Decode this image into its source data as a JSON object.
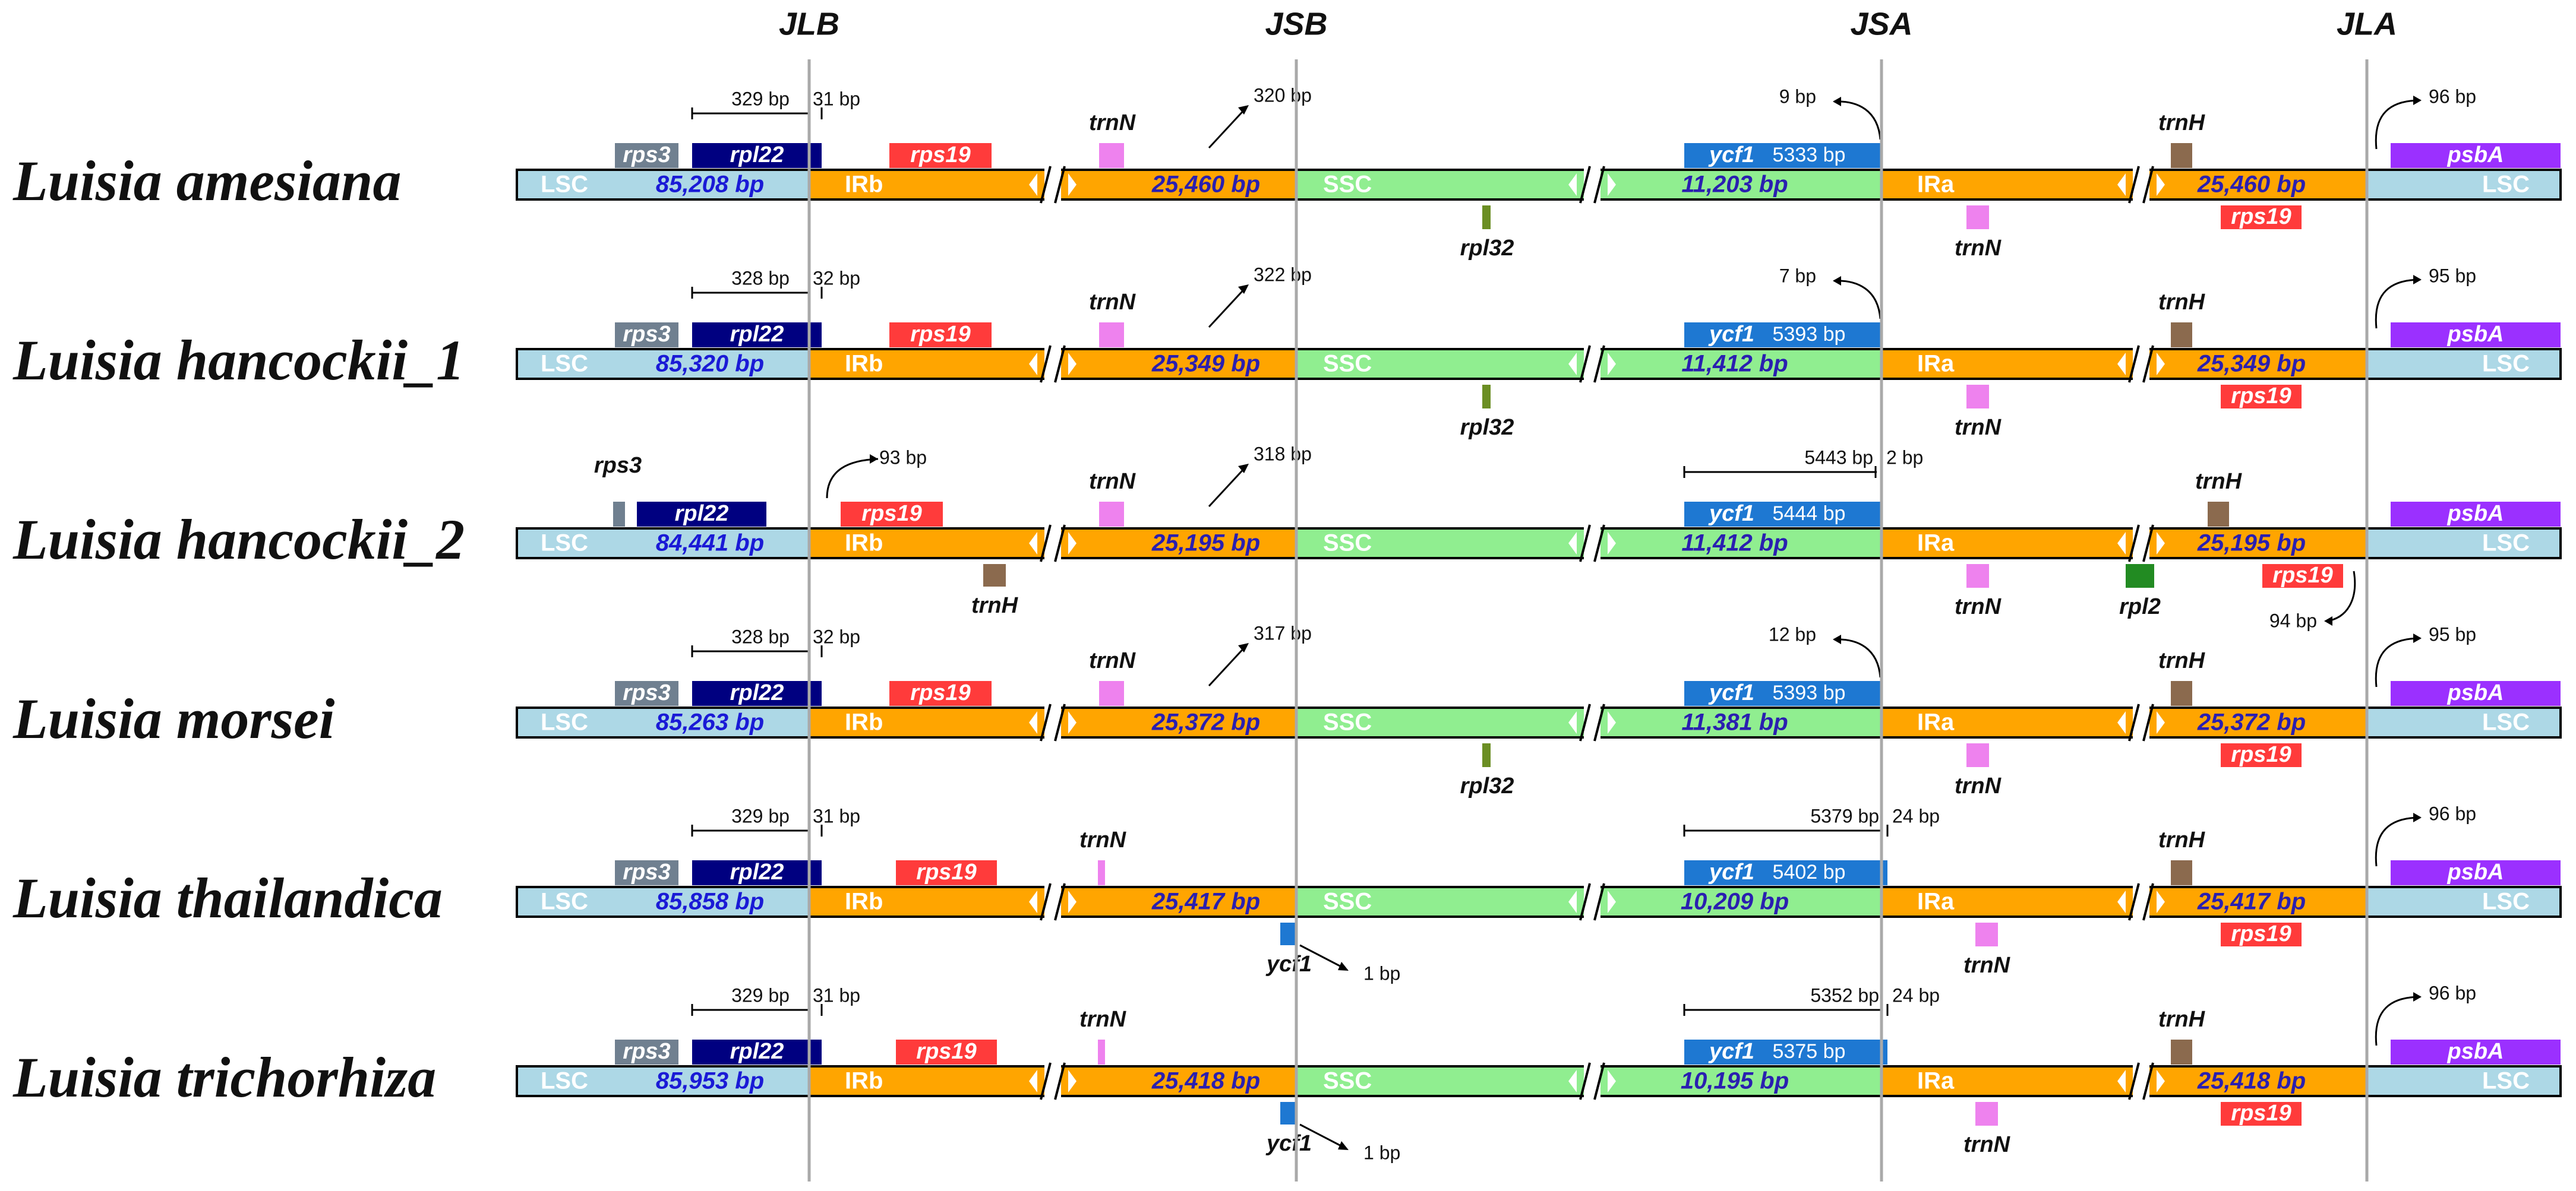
{
  "figure_title": "",
  "junctions": [
    "JLB",
    "JSB",
    "JSA",
    "JLA"
  ],
  "colors": {
    "lsc": "#add8e6",
    "ir": "#ffa500",
    "ssc": "#90ee90",
    "rps3": "#708090",
    "rpl22": "#000080",
    "rps19": "#ff3b3b",
    "trnN": "#ee82ee",
    "trnH": "#8b6a4e",
    "ycf1": "#1e78d2",
    "rpl32": "#6b8e23",
    "psbA": "#9b30ff",
    "rpl2": "#228b22",
    "region_text_ir": "#2a1fb0",
    "region_text_lsc": "#1a1ad6",
    "junction_line": "#a9a9a9"
  },
  "region_labels": {
    "lsc": "LSC",
    "irb": "IRb",
    "ssc": "SSC",
    "ira": "IRa"
  },
  "species": [
    {
      "name": "Luisia amesiana",
      "lsc_len": "85,208 bp",
      "irb_len": "25,460 bp",
      "ssc_len": "11,203 bp",
      "ira_len": "25,460 bp",
      "rps3": "rps3",
      "rpl22": "rpl22",
      "rpl22_span": "329 bp",
      "rpl22_over": "31 bp",
      "rps19_b": "rps19",
      "trnN_b": "trnN",
      "jsb_dist": "320 bp",
      "ssc_gene": "rpl32",
      "ycf1": "ycf1",
      "ycf1_len": "5333 bp",
      "jsa_dist": "9 bp",
      "trnN_a": "trnN",
      "trnH": "trnH",
      "rps19_a": "rps19",
      "psbA": "psbA",
      "jla_dist": "96 bp"
    },
    {
      "name": "Luisia hancockii_1",
      "lsc_len": "85,320 bp",
      "irb_len": "25,349 bp",
      "ssc_len": "11,412 bp",
      "ira_len": "25,349 bp",
      "rps3": "rps3",
      "rpl22": "rpl22",
      "rpl22_span": "328 bp",
      "rpl22_over": "32 bp",
      "rps19_b": "rps19",
      "trnN_b": "trnN",
      "jsb_dist": "322 bp",
      "ssc_gene": "rpl32",
      "ycf1": "ycf1",
      "ycf1_len": "5393 bp",
      "jsa_dist": "7 bp",
      "trnN_a": "trnN",
      "trnH": "trnH",
      "rps19_a": "rps19",
      "psbA": "psbA",
      "jla_dist": "95 bp"
    },
    {
      "name": "Luisia hancockii_2",
      "lsc_len": "84,441 bp",
      "irb_len": "25,195 bp",
      "ssc_len": "11,412 bp",
      "ira_len": "25,195 bp",
      "rps3": "rps3",
      "rpl22": "rpl22",
      "rps19_b": "rps19",
      "rps19_b_dist": "93 bp",
      "trnH_b": "trnH",
      "trnN_b": "trnN",
      "jsb_dist": "318 bp",
      "ycf1": "ycf1",
      "ycf1_len": "5444 bp",
      "ycf1_span": "5443 bp",
      "ycf1_over": "2 bp",
      "trnN_a": "trnN",
      "trnH": "trnH",
      "rps19_a": "rps19",
      "rpl2": "rpl2",
      "rps19_a_dist": "94 bp",
      "psbA": "psbA"
    },
    {
      "name": "Luisia morsei",
      "lsc_len": "85,263 bp",
      "irb_len": "25,372 bp",
      "ssc_len": "11,381 bp",
      "ira_len": "25,372 bp",
      "rps3": "rps3",
      "rpl22": "rpl22",
      "rpl22_span": "328 bp",
      "rpl22_over": "32 bp",
      "rps19_b": "rps19",
      "trnN_b": "trnN",
      "jsb_dist": "317 bp",
      "ssc_gene": "rpl32",
      "ycf1": "ycf1",
      "ycf1_len": "5393 bp",
      "jsa_dist": "12 bp",
      "trnN_a": "trnN",
      "trnH": "trnH",
      "rps19_a": "rps19",
      "psbA": "psbA",
      "jla_dist": "95 bp"
    },
    {
      "name": "Luisia thailandica",
      "lsc_len": "85,858 bp",
      "irb_len": "25,417 bp",
      "ssc_len": "10,209 bp",
      "ira_len": "25,417 bp",
      "rps3": "rps3",
      "rpl22": "rpl22",
      "rpl22_span": "329 bp",
      "rpl22_over": "31 bp",
      "rps19_b": "rps19",
      "trnN_b": "trnN",
      "ycf1_b": "ycf1",
      "ycf1_b_dist": "1 bp",
      "ycf1": "ycf1",
      "ycf1_len": "5402 bp",
      "ycf1_span": "5379 bp",
      "ycf1_over": "24 bp",
      "trnN_a": "trnN",
      "trnH": "trnH",
      "rps19_a": "rps19",
      "psbA": "psbA",
      "jla_dist": "96 bp"
    },
    {
      "name": "Luisia trichorhiza",
      "lsc_len": "85,953 bp",
      "irb_len": "25,418 bp",
      "ssc_len": "10,195 bp",
      "ira_len": "25,418 bp",
      "rps3": "rps3",
      "rpl22": "rpl22",
      "rpl22_span": "329 bp",
      "rpl22_over": "31 bp",
      "rps19_b": "rps19",
      "trnN_b": "trnN",
      "ycf1_b": "ycf1",
      "ycf1_b_dist": "1 bp",
      "ycf1": "ycf1",
      "ycf1_len": "5375 bp",
      "ycf1_span": "5352 bp",
      "ycf1_over": "24 bp",
      "trnN_a": "trnN",
      "trnH": "trnH",
      "rps19_a": "rps19",
      "psbA": "psbA",
      "jla_dist": "96 bp"
    }
  ]
}
